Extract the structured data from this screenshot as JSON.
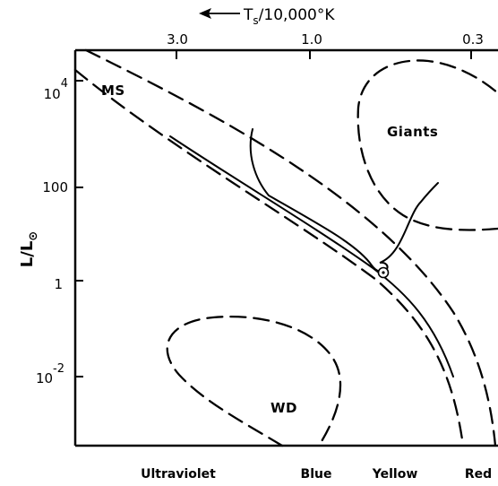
{
  "chart_data": {
    "type": "line",
    "title": "",
    "top_axis": {
      "label": "T",
      "subscript": "s",
      "label_rest": "/10,000°K",
      "ticks": [
        "3.0",
        "1.0",
        "0.3"
      ],
      "tick_values": [
        3.0,
        1.0,
        0.3
      ],
      "scale": "log",
      "direction": "decreasing",
      "arrow": "left"
    },
    "y_axis": {
      "label": "L/L",
      "label_symbol": "⊙",
      "scale": "log",
      "range": [
        0.0001,
        100000
      ],
      "ticks": [
        {
          "value": 10000,
          "base": "10",
          "exp": "4"
        },
        {
          "value": 100,
          "base": "100",
          "exp": ""
        },
        {
          "value": 1,
          "base": "1",
          "exp": ""
        },
        {
          "value": 0.01,
          "base": "10",
          "exp": "-2"
        }
      ]
    },
    "bottom_bands": [
      "Ultraviolet",
      "Blue",
      "Yellow",
      "Red"
    ],
    "regions": [
      "MS",
      "Giants",
      "WD"
    ],
    "sun_marker": {
      "symbol": "sun",
      "temperature_10000K": 0.58,
      "luminosity": 1
    }
  }
}
